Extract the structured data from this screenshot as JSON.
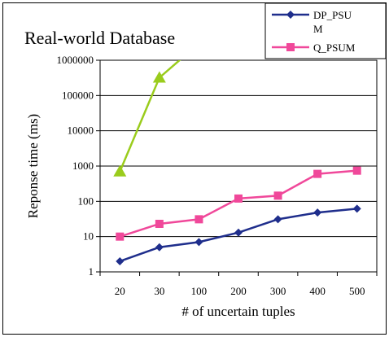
{
  "chart_data": {
    "type": "line",
    "title": "Real-world Database",
    "xlabel": "# of uncertain tuples",
    "ylabel": "Reponse time (ms)",
    "y_scale": "log",
    "ylim": [
      1,
      1000000
    ],
    "y_tick_labels": [
      "1",
      "10",
      "100",
      "1000",
      "10000",
      "100000",
      "1000000"
    ],
    "categories": [
      "20",
      "30",
      "100",
      "200",
      "300",
      "400",
      "500"
    ],
    "grid": "horizontal",
    "legend_position": "top-right",
    "series": [
      {
        "name": "DP_PSUM",
        "legend_lines": [
          "DP_PSU",
          "M"
        ],
        "color": "#1f2e8c",
        "marker": "diamond",
        "values": [
          2,
          5,
          7,
          13,
          31,
          48,
          62
        ]
      },
      {
        "name": "Q_PSUM",
        "legend_lines": [
          "Q_PSUM"
        ],
        "color": "#f0489a",
        "marker": "square",
        "values": [
          10,
          23,
          31,
          120,
          145,
          600,
          740
        ]
      },
      {
        "name": "",
        "legend_lines": [],
        "color": "#9acc1c",
        "marker": "triangle",
        "values": [
          700,
          320000,
          3000000,
          null,
          null,
          null,
          null
        ]
      }
    ]
  }
}
